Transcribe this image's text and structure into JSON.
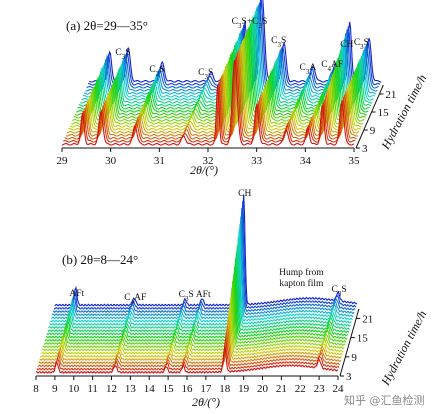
{
  "watermark": "知乎 @汇鱼检测",
  "chart_data": [
    {
      "type": "line",
      "panel_title": "(a) 2θ=29—35°",
      "xlabel": "2θ/(°)",
      "zlabel": "Hydration time/h",
      "xlim": [
        29,
        35
      ],
      "x_ticks": [
        "29",
        "30",
        "31",
        "32",
        "33",
        "34",
        "35"
      ],
      "z_ticks": [
        "3",
        "9",
        "15",
        "21"
      ],
      "z_range_h": [
        3,
        24
      ],
      "curve_count": 22,
      "color_order": "red (early) to blue (late)",
      "grid": false,
      "annotations": [
        {
          "label": "C3S",
          "x": 29.8
        },
        {
          "label": "C2S",
          "x": 30.5
        },
        {
          "label": "C3S",
          "x": 31.5
        },
        {
          "label": "C3S+C2S",
          "x": 32.4
        },
        {
          "label": "C3S",
          "x": 33.0
        },
        {
          "label": "C3A",
          "x": 33.6
        },
        {
          "label": "C4AF",
          "x": 34.1
        },
        {
          "label": "CH",
          "x": 34.4
        },
        {
          "label": "C3S",
          "x": 34.7
        }
      ],
      "peaks": [
        {
          "x": 29.42,
          "h": 0.35,
          "w": 0.05
        },
        {
          "x": 29.8,
          "h": 0.38,
          "w": 0.06
        },
        {
          "x": 30.5,
          "h": 0.22,
          "w": 0.06
        },
        {
          "x": 31.5,
          "h": 0.1,
          "w": 0.06
        },
        {
          "x": 32.2,
          "h": 0.7,
          "w": 0.04
        },
        {
          "x": 32.55,
          "h": 1.0,
          "w": 0.07
        },
        {
          "x": 33.0,
          "h": 0.45,
          "w": 0.06
        },
        {
          "x": 33.6,
          "h": 0.18,
          "w": 0.06
        },
        {
          "x": 34.05,
          "h": 0.2,
          "w": 0.05
        },
        {
          "x": 34.35,
          "h": 0.45,
          "w": 0.05
        },
        {
          "x": 34.75,
          "h": 0.5,
          "w": 0.06
        }
      ],
      "growing_peaks": [
        {
          "x": 34.35,
          "extra": 0.25
        }
      ]
    },
    {
      "type": "line",
      "panel_title": "(b) 2θ=8—24°",
      "xlabel": "2θ/(°)",
      "zlabel": "Hydration time/h",
      "xlim": [
        8,
        24
      ],
      "x_ticks": [
        "8",
        "9",
        "10",
        "11",
        "12",
        "13",
        "14",
        "15",
        "16",
        "17",
        "18",
        "19",
        "20",
        "21",
        "22",
        "23",
        "24"
      ],
      "z_ticks": [
        "3",
        "9",
        "15",
        "21"
      ],
      "z_range_h": [
        3,
        24
      ],
      "curve_count": 22,
      "color_order": "red (early) to blue (late)",
      "grid": false,
      "annotations": [
        {
          "label": "AFt",
          "x": 9.1
        },
        {
          "label": "C4AF",
          "x": 12.2
        },
        {
          "label": "C3S",
          "x": 14.9
        },
        {
          "label": "AFt",
          "x": 15.8
        },
        {
          "label": "CH",
          "x": 18.0
        },
        {
          "label": "Hump from kapton film",
          "x": 21.0
        },
        {
          "label": "C3S",
          "x": 23.0
        }
      ],
      "peaks": [
        {
          "x": 9.1,
          "h": 0.12,
          "w": 0.1
        },
        {
          "x": 12.2,
          "h": 0.08,
          "w": 0.12
        },
        {
          "x": 14.9,
          "h": 0.07,
          "w": 0.1
        },
        {
          "x": 15.8,
          "h": 0.08,
          "w": 0.1
        },
        {
          "x": 18.0,
          "h": 0.3,
          "w": 0.1
        },
        {
          "x": 23.0,
          "h": 0.1,
          "w": 0.12
        }
      ],
      "growing_peaks": [
        {
          "x": 18.0,
          "extra": 1.0
        },
        {
          "x": 9.1,
          "extra": 0.08
        }
      ],
      "hump": {
        "center": 21.5,
        "width": 2.2,
        "h": 0.08
      }
    }
  ]
}
